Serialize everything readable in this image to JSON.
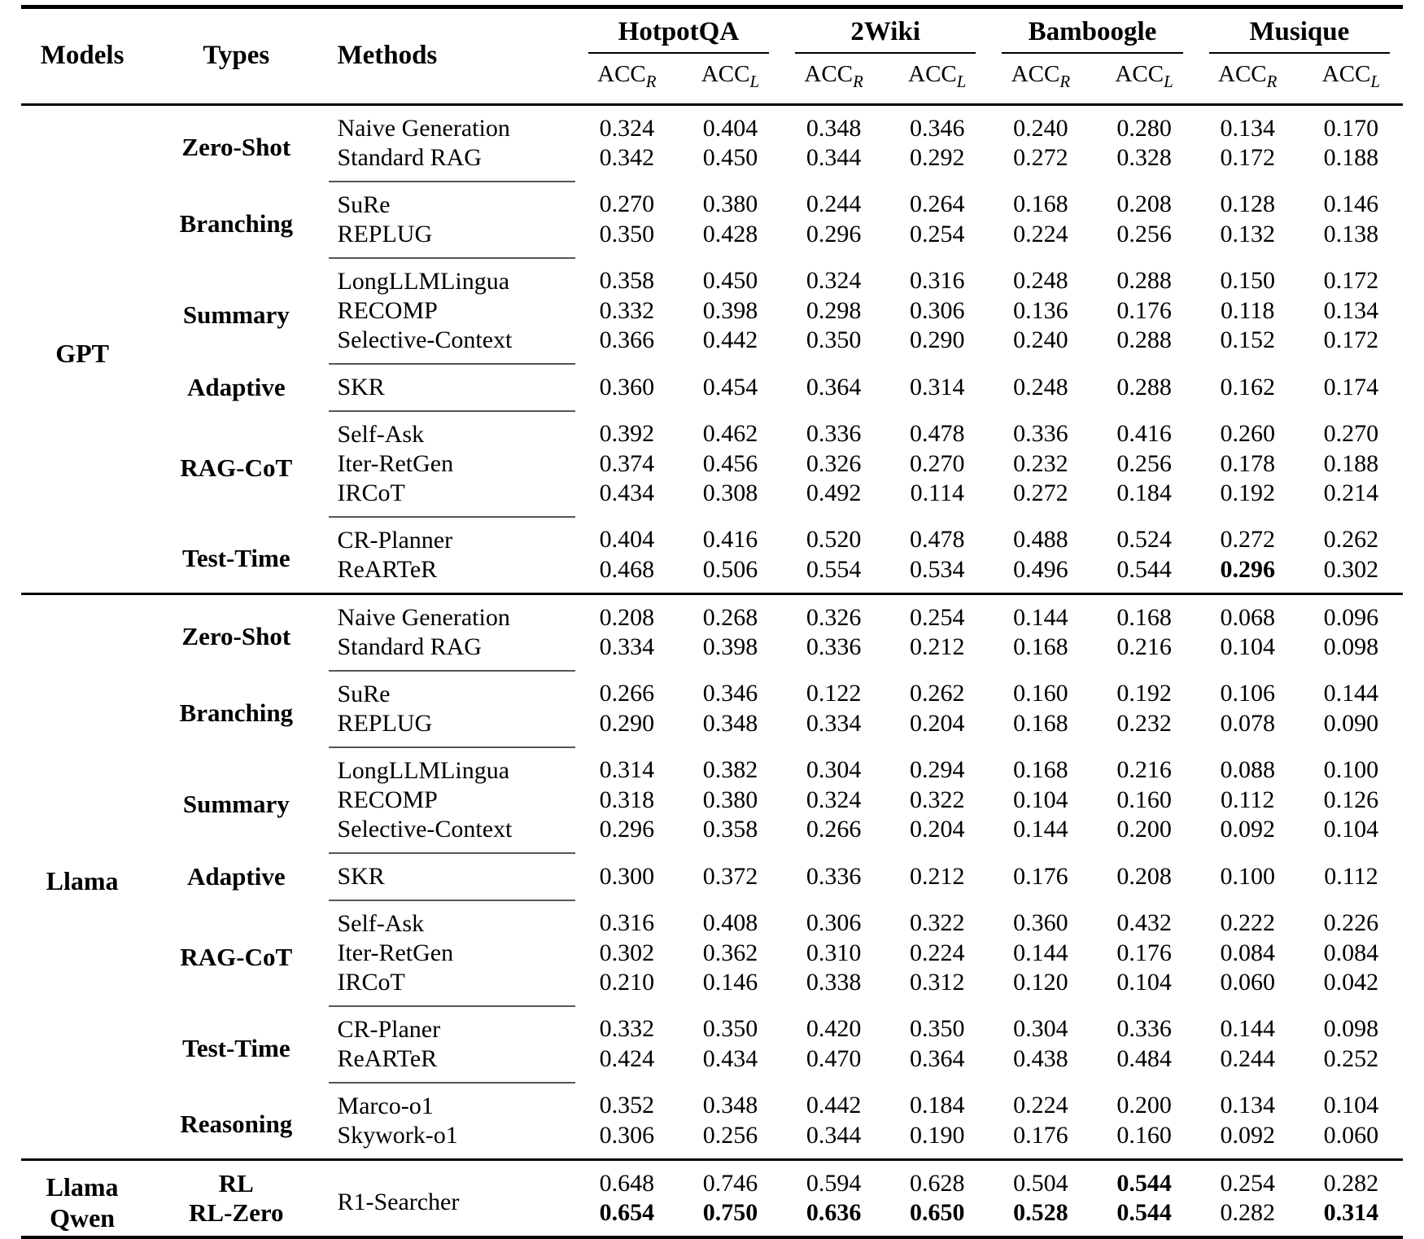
{
  "page": {
    "background": "#ffffff",
    "text_color": "#000000",
    "rule_color": "#000000",
    "separator_color": "#555555"
  },
  "table": {
    "header": {
      "models": "Models",
      "types": "Types",
      "methods": "Methods",
      "metric_base": "ACC",
      "sub_r": "R",
      "sub_l": "L",
      "datasets": [
        {
          "name": "HotpotQA"
        },
        {
          "name": "2Wiki"
        },
        {
          "name": "Bamboogle"
        },
        {
          "name": "Musique"
        }
      ]
    },
    "sections": [
      {
        "model_lines": [
          "GPT"
        ],
        "groups": [
          {
            "type_lines": [
              "Zero-Shot"
            ],
            "rows": [
              {
                "method": "Naive Generation",
                "values": [
                  "0.324",
                  "0.404",
                  "0.348",
                  "0.346",
                  "0.240",
                  "0.280",
                  "0.134",
                  "0.170"
                ],
                "bold": []
              },
              {
                "method": "Standard RAG",
                "values": [
                  "0.342",
                  "0.450",
                  "0.344",
                  "0.292",
                  "0.272",
                  "0.328",
                  "0.172",
                  "0.188"
                ],
                "bold": []
              }
            ]
          },
          {
            "type_lines": [
              "Branching"
            ],
            "rows": [
              {
                "method": "SuRe",
                "values": [
                  "0.270",
                  "0.380",
                  "0.244",
                  "0.264",
                  "0.168",
                  "0.208",
                  "0.128",
                  "0.146"
                ],
                "bold": []
              },
              {
                "method": "REPLUG",
                "values": [
                  "0.350",
                  "0.428",
                  "0.296",
                  "0.254",
                  "0.224",
                  "0.256",
                  "0.132",
                  "0.138"
                ],
                "bold": []
              }
            ]
          },
          {
            "type_lines": [
              "Summary"
            ],
            "rows": [
              {
                "method": "LongLLMLingua",
                "values": [
                  "0.358",
                  "0.450",
                  "0.324",
                  "0.316",
                  "0.248",
                  "0.288",
                  "0.150",
                  "0.172"
                ],
                "bold": []
              },
              {
                "method": "RECOMP",
                "values": [
                  "0.332",
                  "0.398",
                  "0.298",
                  "0.306",
                  "0.136",
                  "0.176",
                  "0.118",
                  "0.134"
                ],
                "bold": []
              },
              {
                "method": "Selective-Context",
                "values": [
                  "0.366",
                  "0.442",
                  "0.350",
                  "0.290",
                  "0.240",
                  "0.288",
                  "0.152",
                  "0.172"
                ],
                "bold": []
              }
            ]
          },
          {
            "type_lines": [
              "Adaptive"
            ],
            "rows": [
              {
                "method": "SKR",
                "values": [
                  "0.360",
                  "0.454",
                  "0.364",
                  "0.314",
                  "0.248",
                  "0.288",
                  "0.162",
                  "0.174"
                ],
                "bold": []
              }
            ]
          },
          {
            "type_lines": [
              "RAG-CoT"
            ],
            "rows": [
              {
                "method": "Self-Ask",
                "values": [
                  "0.392",
                  "0.462",
                  "0.336",
                  "0.478",
                  "0.336",
                  "0.416",
                  "0.260",
                  "0.270"
                ],
                "bold": []
              },
              {
                "method": "Iter-RetGen",
                "values": [
                  "0.374",
                  "0.456",
                  "0.326",
                  "0.270",
                  "0.232",
                  "0.256",
                  "0.178",
                  "0.188"
                ],
                "bold": []
              },
              {
                "method": "IRCoT",
                "values": [
                  "0.434",
                  "0.308",
                  "0.492",
                  "0.114",
                  "0.272",
                  "0.184",
                  "0.192",
                  "0.214"
                ],
                "bold": []
              }
            ]
          },
          {
            "type_lines": [
              "Test-Time"
            ],
            "rows": [
              {
                "method": "CR-Planner",
                "values": [
                  "0.404",
                  "0.416",
                  "0.520",
                  "0.478",
                  "0.488",
                  "0.524",
                  "0.272",
                  "0.262"
                ],
                "bold": []
              },
              {
                "method": "ReARTeR",
                "values": [
                  "0.468",
                  "0.506",
                  "0.554",
                  "0.534",
                  "0.496",
                  "0.544",
                  "0.296",
                  "0.302"
                ],
                "bold": [
                  6
                ]
              }
            ]
          }
        ]
      },
      {
        "model_lines": [
          "Llama"
        ],
        "groups": [
          {
            "type_lines": [
              "Zero-Shot"
            ],
            "rows": [
              {
                "method": "Naive Generation",
                "values": [
                  "0.208",
                  "0.268",
                  "0.326",
                  "0.254",
                  "0.144",
                  "0.168",
                  "0.068",
                  "0.096"
                ],
                "bold": []
              },
              {
                "method": "Standard RAG",
                "values": [
                  "0.334",
                  "0.398",
                  "0.336",
                  "0.212",
                  "0.168",
                  "0.216",
                  "0.104",
                  "0.098"
                ],
                "bold": []
              }
            ]
          },
          {
            "type_lines": [
              "Branching"
            ],
            "rows": [
              {
                "method": "SuRe",
                "values": [
                  "0.266",
                  "0.346",
                  "0.122",
                  "0.262",
                  "0.160",
                  "0.192",
                  "0.106",
                  "0.144"
                ],
                "bold": []
              },
              {
                "method": "REPLUG",
                "values": [
                  "0.290",
                  "0.348",
                  "0.334",
                  "0.204",
                  "0.168",
                  "0.232",
                  "0.078",
                  "0.090"
                ],
                "bold": []
              }
            ]
          },
          {
            "type_lines": [
              "Summary"
            ],
            "rows": [
              {
                "method": "LongLLMLingua",
                "values": [
                  "0.314",
                  "0.382",
                  "0.304",
                  "0.294",
                  "0.168",
                  "0.216",
                  "0.088",
                  "0.100"
                ],
                "bold": []
              },
              {
                "method": "RECOMP",
                "values": [
                  "0.318",
                  "0.380",
                  "0.324",
                  "0.322",
                  "0.104",
                  "0.160",
                  "0.112",
                  "0.126"
                ],
                "bold": []
              },
              {
                "method": "Selective-Context",
                "values": [
                  "0.296",
                  "0.358",
                  "0.266",
                  "0.204",
                  "0.144",
                  "0.200",
                  "0.092",
                  "0.104"
                ],
                "bold": []
              }
            ]
          },
          {
            "type_lines": [
              "Adaptive"
            ],
            "rows": [
              {
                "method": "SKR",
                "values": [
                  "0.300",
                  "0.372",
                  "0.336",
                  "0.212",
                  "0.176",
                  "0.208",
                  "0.100",
                  "0.112"
                ],
                "bold": []
              }
            ]
          },
          {
            "type_lines": [
              "RAG-CoT"
            ],
            "rows": [
              {
                "method": "Self-Ask",
                "values": [
                  "0.316",
                  "0.408",
                  "0.306",
                  "0.322",
                  "0.360",
                  "0.432",
                  "0.222",
                  "0.226"
                ],
                "bold": []
              },
              {
                "method": "Iter-RetGen",
                "values": [
                  "0.302",
                  "0.362",
                  "0.310",
                  "0.224",
                  "0.144",
                  "0.176",
                  "0.084",
                  "0.084"
                ],
                "bold": []
              },
              {
                "method": "IRCoT",
                "values": [
                  "0.210",
                  "0.146",
                  "0.338",
                  "0.312",
                  "0.120",
                  "0.104",
                  "0.060",
                  "0.042"
                ],
                "bold": []
              }
            ]
          },
          {
            "type_lines": [
              "Test-Time"
            ],
            "rows": [
              {
                "method": "CR-Planer",
                "values": [
                  "0.332",
                  "0.350",
                  "0.420",
                  "0.350",
                  "0.304",
                  "0.336",
                  "0.144",
                  "0.098"
                ],
                "bold": []
              },
              {
                "method": "ReARTeR",
                "values": [
                  "0.424",
                  "0.434",
                  "0.470",
                  "0.364",
                  "0.438",
                  "0.484",
                  "0.244",
                  "0.252"
                ],
                "bold": []
              }
            ]
          },
          {
            "type_lines": [
              "Reasoning"
            ],
            "rows": [
              {
                "method": "Marco-o1",
                "values": [
                  "0.352",
                  "0.348",
                  "0.442",
                  "0.184",
                  "0.224",
                  "0.200",
                  "0.134",
                  "0.104"
                ],
                "bold": []
              },
              {
                "method": "Skywork-o1",
                "values": [
                  "0.306",
                  "0.256",
                  "0.344",
                  "0.190",
                  "0.176",
                  "0.160",
                  "0.092",
                  "0.060"
                ],
                "bold": []
              }
            ]
          }
        ]
      },
      {
        "model_lines": [
          "Llama",
          "Qwen"
        ],
        "compact": true,
        "shared_method": "R1-Searcher",
        "groups": [
          {
            "type_lines": [
              "RL"
            ],
            "rows": [
              {
                "method": null,
                "values": [
                  "0.648",
                  "0.746",
                  "0.594",
                  "0.628",
                  "0.504",
                  "0.544",
                  "0.254",
                  "0.282"
                ],
                "bold": [
                  5
                ]
              }
            ]
          },
          {
            "type_lines": [
              "RL-Zero"
            ],
            "rows": [
              {
                "method": null,
                "values": [
                  "0.654",
                  "0.750",
                  "0.636",
                  "0.650",
                  "0.528",
                  "0.544",
                  "0.282",
                  "0.314"
                ],
                "bold": [
                  0,
                  1,
                  2,
                  3,
                  4,
                  5,
                  7
                ]
              }
            ]
          }
        ]
      }
    ]
  }
}
